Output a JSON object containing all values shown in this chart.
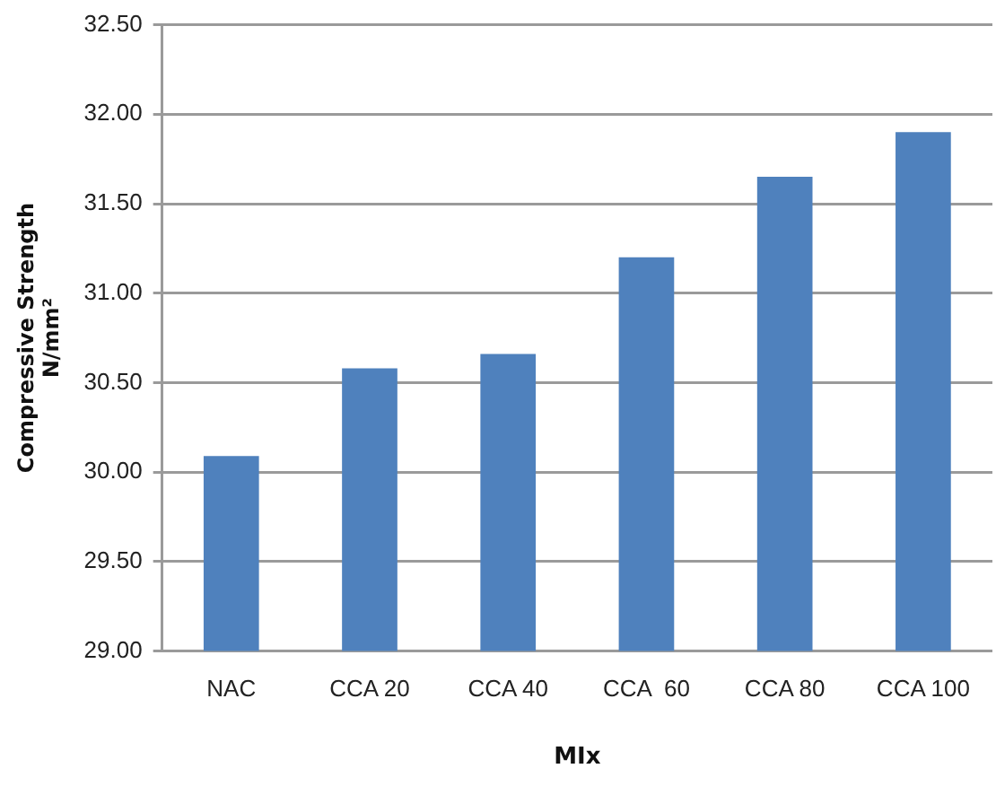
{
  "chart_data": {
    "type": "bar",
    "xlabel": "MIx",
    "ylabel": "Compressive Strength\nN/mm²",
    "categories": [
      "NAC",
      "CCA 20",
      "CCA 40",
      "CCA  60",
      "CCA 80",
      "CCA 100"
    ],
    "values": [
      30.09,
      30.58,
      30.66,
      31.2,
      31.65,
      31.9
    ],
    "color": "#4f81bd",
    "ylim": [
      29,
      32.5
    ],
    "yticks": [
      {
        "value": 29,
        "label": "29.00"
      },
      {
        "value": 29.5,
        "label": "29.50"
      },
      {
        "value": 30,
        "label": "30.00"
      },
      {
        "value": 30.5,
        "label": "30.50"
      },
      {
        "value": 31,
        "label": "31.00"
      },
      {
        "value": 31.5,
        "label": "31.50"
      },
      {
        "value": 32,
        "label": "32.00"
      },
      {
        "value": 32.5,
        "label": "32.50"
      }
    ],
    "grid": "y",
    "legend": false
  }
}
